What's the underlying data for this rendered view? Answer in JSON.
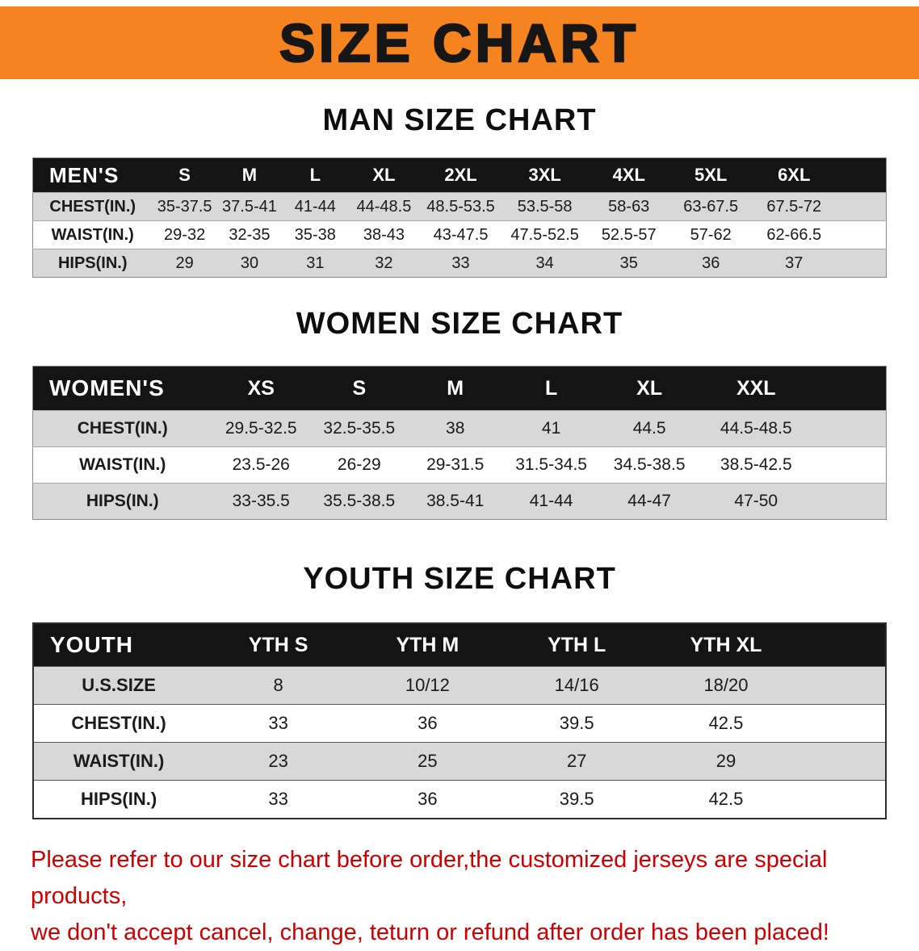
{
  "banner": {
    "title": "SIZE CHART"
  },
  "colors": {
    "banner_bg": "#f5831f",
    "header_bg": "#141414",
    "row_alt_bg": "#d8d8d8",
    "disclaimer_red": "#cc0000"
  },
  "sections": {
    "men": {
      "heading": "MAN SIZE CHART",
      "header": [
        "MEN'S",
        "S",
        "M",
        "L",
        "XL",
        "2XL",
        "3XL",
        "4XL",
        "5XL",
        "6XL"
      ],
      "rows": [
        [
          "CHEST(IN.)",
          "35-37.5",
          "37.5-41",
          "41-44",
          "44-48.5",
          "48.5-53.5",
          "53.5-58",
          "58-63",
          "63-67.5",
          "67.5-72"
        ],
        [
          "WAIST(IN.)",
          "29-32",
          "32-35",
          "35-38",
          "38-43",
          "43-47.5",
          "47.5-52.5",
          "52.5-57",
          "57-62",
          "62-66.5"
        ],
        [
          "HIPS(IN.)",
          "29",
          "30",
          "31",
          "32",
          "33",
          "34",
          "35",
          "36",
          "37"
        ]
      ]
    },
    "women": {
      "heading": "WOMEN SIZE CHART",
      "header": [
        "WOMEN'S",
        "XS",
        "S",
        "M",
        "L",
        "XL",
        "XXL"
      ],
      "rows": [
        [
          "CHEST(IN.)",
          "29.5-32.5",
          "32.5-35.5",
          "38",
          "41",
          "44.5",
          "44.5-48.5"
        ],
        [
          "WAIST(IN.)",
          "23.5-26",
          "26-29",
          "29-31.5",
          "31.5-34.5",
          "34.5-38.5",
          "38.5-42.5"
        ],
        [
          "HIPS(IN.)",
          "33-35.5",
          "35.5-38.5",
          "38.5-41",
          "41-44",
          "44-47",
          "47-50"
        ]
      ]
    },
    "youth": {
      "heading": "YOUTH SIZE CHART",
      "header": [
        "YOUTH",
        "YTH S",
        "YTH M",
        "YTH L",
        "YTH XL"
      ],
      "rows": [
        [
          "U.S.SIZE",
          "8",
          "10/12",
          "14/16",
          "18/20"
        ],
        [
          "CHEST(IN.)",
          "33",
          "36",
          "39.5",
          "42.5"
        ],
        [
          "WAIST(IN.)",
          "23",
          "25",
          "27",
          "29"
        ],
        [
          "HIPS(IN.)",
          "33",
          "36",
          "39.5",
          "42.5"
        ]
      ]
    }
  },
  "disclaimer": {
    "line1": "Please refer to our size chart before order,the customized jerseys are special products,",
    "line2": "we don't accept cancel, change, teturn or refund after order has been placed!"
  }
}
